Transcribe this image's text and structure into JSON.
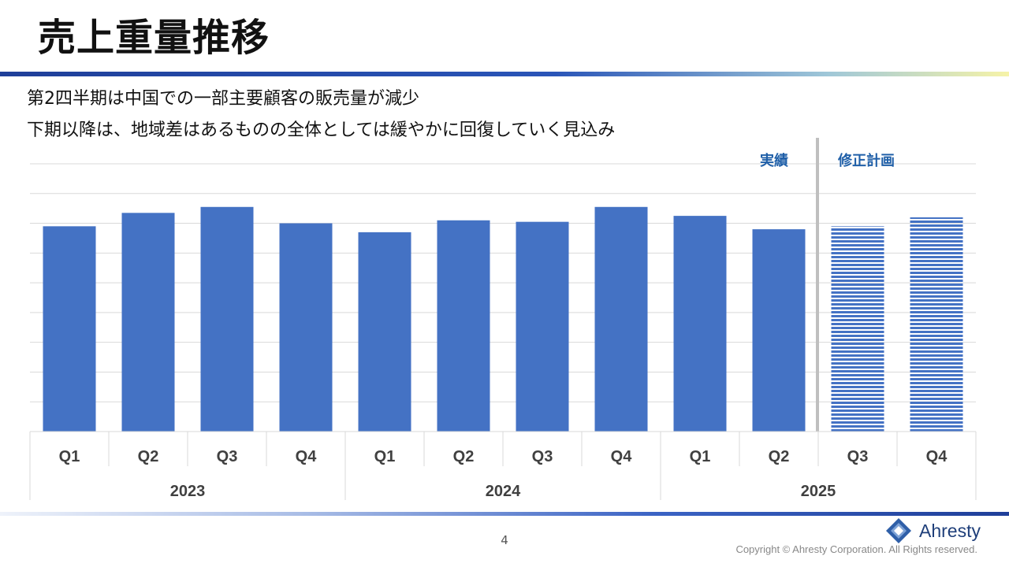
{
  "slide": {
    "title": "売上重量推移",
    "subtitle_lines": [
      "第2四半期は中国での一部主要顧客の販売量が減少",
      "下期以降は、地域差はあるものの全体としては緩やかに回復していく見込み"
    ],
    "page_number": "4",
    "logo_text": "Ahresty",
    "copyright": "Copyright © Ahresty Corporation. All Rights reserved."
  },
  "colors": {
    "bar": "#4472c4",
    "plan_stripe": "#4472c4",
    "accent_label": "#1f5fa8",
    "divider": "#bfbfbf",
    "grid": "#d9d9d9"
  },
  "chart_data": {
    "type": "bar",
    "categories": [
      "Q1",
      "Q2",
      "Q3",
      "Q4",
      "Q1",
      "Q2",
      "Q3",
      "Q4",
      "Q1",
      "Q2",
      "Q3",
      "Q4"
    ],
    "years": [
      "2023",
      "2024",
      "2025"
    ],
    "values": [
      69,
      73.5,
      75.5,
      70,
      67,
      71,
      70.5,
      75.5,
      72.5,
      68,
      69,
      72
    ],
    "actual_count": 10,
    "ylim": [
      0,
      90
    ],
    "grid": true,
    "legend": {
      "actual_label": "実績",
      "plan_label": "修正計画"
    }
  }
}
